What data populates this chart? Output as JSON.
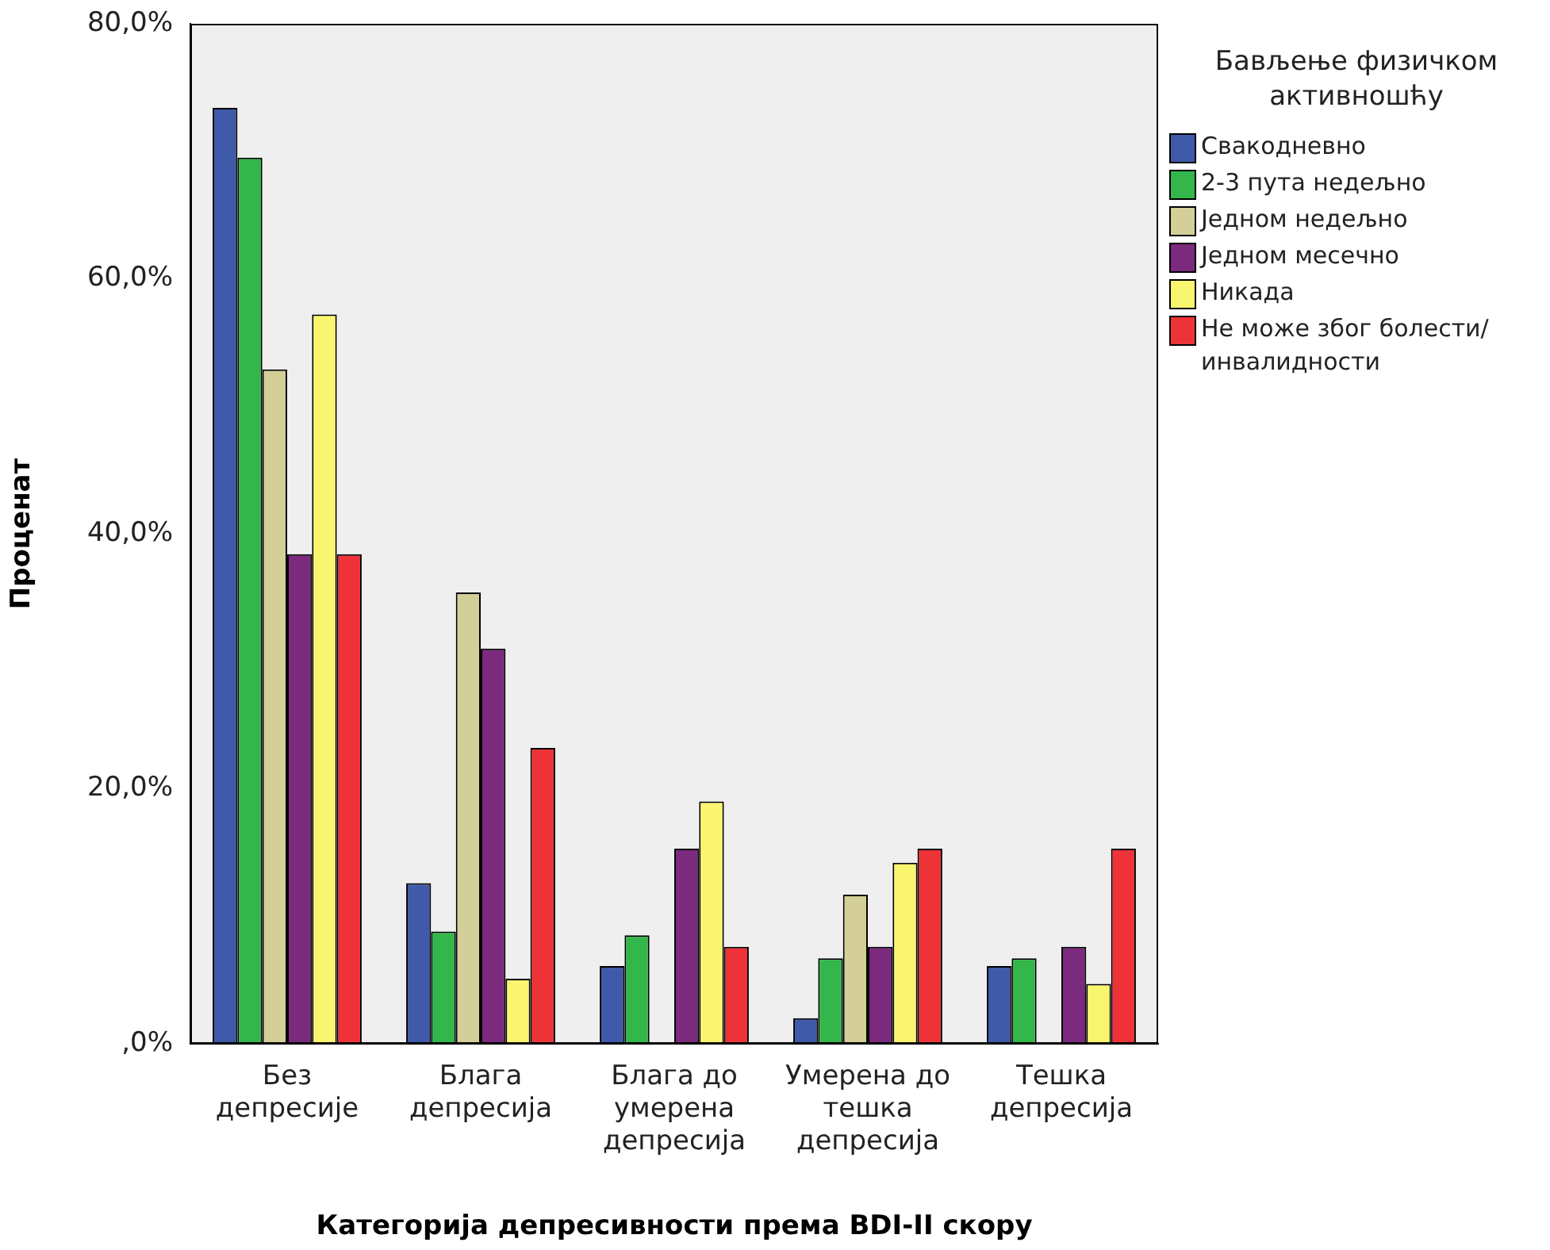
{
  "chart_data": {
    "type": "bar",
    "xlabel": "Категорија депресивности према BDI-II скору",
    "ylabel": "Проценат",
    "legend_title": "Бављење физичком активношћу",
    "categories": [
      "Без депресије",
      "Блага депресија",
      "Блага до умерена депресија",
      "Умерена до тешка депресија",
      "Тешка депресија"
    ],
    "series": [
      {
        "name": "Свакодневно",
        "color": "#3f5aa9",
        "values": [
          73.4,
          12.6,
          6.1,
          2.0,
          6.1
        ]
      },
      {
        "name": "2-3 пута недељно",
        "color": "#33b74a",
        "values": [
          69.5,
          8.8,
          8.5,
          6.7,
          6.7
        ]
      },
      {
        "name": "Једном недељно",
        "color": "#d4cf98",
        "values": [
          52.9,
          35.4,
          0,
          11.7,
          0
        ]
      },
      {
        "name": "Једном месечно",
        "color": "#7b2a7d",
        "values": [
          38.4,
          31.0,
          15.3,
          7.6,
          7.6
        ]
      },
      {
        "name": "Никада",
        "color": "#f9f56f",
        "values": [
          57.2,
          5.1,
          19.0,
          14.2,
          4.7
        ]
      },
      {
        "name": "Не може због болести/инвалидности",
        "color": "#ee3338",
        "values": [
          38.4,
          23.2,
          7.6,
          15.3,
          15.3
        ]
      }
    ],
    "ylim": [
      0,
      80
    ],
    "yticks": [
      {
        "value": 0,
        "label": ",0%"
      },
      {
        "value": 20,
        "label": "20,0%"
      },
      {
        "value": 40,
        "label": "40,0%"
      },
      {
        "value": 60,
        "label": "60,0%"
      },
      {
        "value": 80,
        "label": "80,0%"
      }
    ],
    "grid": false,
    "legend": "right"
  }
}
